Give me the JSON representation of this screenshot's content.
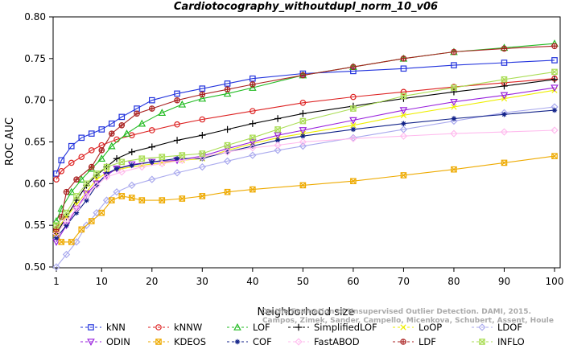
{
  "chart_data": {
    "type": "line",
    "title": "Cardiotocography_withoutdupl_norm_10_v06",
    "xlabel": "Neighborhood size",
    "ylabel": "ROC AUC",
    "xlim": [
      1,
      100
    ],
    "ylim": [
      0.5,
      0.8
    ],
    "x_ticks": [
      "1",
      "10",
      "20",
      "30",
      "40",
      "50",
      "60",
      "70",
      "80",
      "90",
      "100"
    ],
    "y_ticks": [
      "0.50",
      "0.55",
      "0.60",
      "0.65",
      "0.70",
      "0.75",
      "0.80"
    ],
    "grid": false,
    "legend_position": "bottom",
    "citation": [
      "Campos, Zimek, Sander, Campello, Micenkova, Schubert, Assent, Houle",
      "On the Evaluation of Unsupervised Outlier Detection. DAMI, 2015."
    ],
    "series": [
      {
        "name": "kNN",
        "color": "#2233dd",
        "marker": "square",
        "points": [
          [
            1,
            0.612
          ],
          [
            2,
            0.628
          ],
          [
            4,
            0.645
          ],
          [
            6,
            0.655
          ],
          [
            8,
            0.66
          ],
          [
            10,
            0.665
          ],
          [
            12,
            0.672
          ],
          [
            14,
            0.68
          ],
          [
            17,
            0.69
          ],
          [
            20,
            0.7
          ],
          [
            25,
            0.708
          ],
          [
            30,
            0.714
          ],
          [
            35,
            0.72
          ],
          [
            40,
            0.726
          ],
          [
            50,
            0.732
          ],
          [
            60,
            0.735
          ],
          [
            70,
            0.738
          ],
          [
            80,
            0.742
          ],
          [
            90,
            0.745
          ],
          [
            100,
            0.748
          ]
        ]
      },
      {
        "name": "kNNW",
        "color": "#dd2222",
        "marker": "circle",
        "points": [
          [
            1,
            0.605
          ],
          [
            2,
            0.615
          ],
          [
            4,
            0.625
          ],
          [
            6,
            0.632
          ],
          [
            8,
            0.64
          ],
          [
            10,
            0.646
          ],
          [
            13,
            0.653
          ],
          [
            16,
            0.658
          ],
          [
            20,
            0.664
          ],
          [
            25,
            0.671
          ],
          [
            30,
            0.677
          ],
          [
            40,
            0.687
          ],
          [
            50,
            0.697
          ],
          [
            60,
            0.704
          ],
          [
            70,
            0.71
          ],
          [
            80,
            0.716
          ],
          [
            90,
            0.721
          ],
          [
            100,
            0.726
          ]
        ]
      },
      {
        "name": "LOF",
        "color": "#22bb22",
        "marker": "triangle",
        "points": [
          [
            1,
            0.555
          ],
          [
            2,
            0.57
          ],
          [
            4,
            0.59
          ],
          [
            6,
            0.605
          ],
          [
            8,
            0.618
          ],
          [
            10,
            0.63
          ],
          [
            12,
            0.645
          ],
          [
            15,
            0.66
          ],
          [
            18,
            0.672
          ],
          [
            22,
            0.685
          ],
          [
            26,
            0.695
          ],
          [
            30,
            0.702
          ],
          [
            35,
            0.708
          ],
          [
            40,
            0.715
          ],
          [
            50,
            0.73
          ],
          [
            60,
            0.74
          ],
          [
            70,
            0.75
          ],
          [
            80,
            0.758
          ],
          [
            90,
            0.763
          ],
          [
            100,
            0.768
          ]
        ]
      },
      {
        "name": "SimplifiedLOF",
        "color": "#000000",
        "marker": "plus",
        "points": [
          [
            1,
            0.54
          ],
          [
            3,
            0.56
          ],
          [
            5,
            0.58
          ],
          [
            7,
            0.598
          ],
          [
            9,
            0.61
          ],
          [
            11,
            0.62
          ],
          [
            13,
            0.63
          ],
          [
            16,
            0.638
          ],
          [
            20,
            0.644
          ],
          [
            25,
            0.652
          ],
          [
            30,
            0.658
          ],
          [
            35,
            0.665
          ],
          [
            40,
            0.672
          ],
          [
            45,
            0.678
          ],
          [
            50,
            0.684
          ],
          [
            60,
            0.693
          ],
          [
            70,
            0.702
          ],
          [
            80,
            0.71
          ],
          [
            90,
            0.717
          ],
          [
            100,
            0.725
          ]
        ]
      },
      {
        "name": "LoOP",
        "color": "#eeee00",
        "marker": "x",
        "points": [
          [
            1,
            0.545
          ],
          [
            3,
            0.56
          ],
          [
            5,
            0.575
          ],
          [
            7,
            0.59
          ],
          [
            9,
            0.605
          ],
          [
            11,
            0.613
          ],
          [
            14,
            0.618
          ],
          [
            18,
            0.622
          ],
          [
            22,
            0.625
          ],
          [
            26,
            0.628
          ],
          [
            30,
            0.63
          ],
          [
            35,
            0.64
          ],
          [
            40,
            0.648
          ],
          [
            45,
            0.655
          ],
          [
            50,
            0.66
          ],
          [
            60,
            0.67
          ],
          [
            70,
            0.682
          ],
          [
            80,
            0.692
          ],
          [
            90,
            0.702
          ],
          [
            100,
            0.712
          ]
        ]
      },
      {
        "name": "LDOF",
        "color": "#aaaaee",
        "marker": "diamond",
        "points": [
          [
            1,
            0.5
          ],
          [
            3,
            0.515
          ],
          [
            5,
            0.53
          ],
          [
            7,
            0.55
          ],
          [
            9,
            0.565
          ],
          [
            11,
            0.58
          ],
          [
            13,
            0.59
          ],
          [
            16,
            0.598
          ],
          [
            20,
            0.605
          ],
          [
            25,
            0.613
          ],
          [
            30,
            0.62
          ],
          [
            35,
            0.627
          ],
          [
            40,
            0.634
          ],
          [
            45,
            0.64
          ],
          [
            50,
            0.645
          ],
          [
            60,
            0.655
          ],
          [
            70,
            0.665
          ],
          [
            80,
            0.675
          ],
          [
            90,
            0.685
          ],
          [
            100,
            0.692
          ]
        ]
      },
      {
        "name": "ODIN",
        "color": "#9922dd",
        "marker": "triangle-down",
        "points": [
          [
            1,
            0.53
          ],
          [
            3,
            0.55
          ],
          [
            5,
            0.57
          ],
          [
            7,
            0.588
          ],
          [
            9,
            0.6
          ],
          [
            11,
            0.61
          ],
          [
            13,
            0.618
          ],
          [
            16,
            0.623
          ],
          [
            20,
            0.626
          ],
          [
            25,
            0.628
          ],
          [
            30,
            0.633
          ],
          [
            35,
            0.642
          ],
          [
            40,
            0.65
          ],
          [
            45,
            0.658
          ],
          [
            50,
            0.664
          ],
          [
            60,
            0.676
          ],
          [
            70,
            0.688
          ],
          [
            80,
            0.698
          ],
          [
            90,
            0.706
          ],
          [
            100,
            0.715
          ]
        ]
      },
      {
        "name": "KDEOS",
        "color": "#eeaa00",
        "marker": "square-x",
        "points": [
          [
            1,
            0.54
          ],
          [
            2,
            0.53
          ],
          [
            4,
            0.53
          ],
          [
            6,
            0.545
          ],
          [
            8,
            0.555
          ],
          [
            10,
            0.565
          ],
          [
            12,
            0.58
          ],
          [
            14,
            0.585
          ],
          [
            16,
            0.583
          ],
          [
            18,
            0.58
          ],
          [
            22,
            0.58
          ],
          [
            26,
            0.582
          ],
          [
            30,
            0.585
          ],
          [
            35,
            0.59
          ],
          [
            40,
            0.593
          ],
          [
            50,
            0.598
          ],
          [
            60,
            0.603
          ],
          [
            70,
            0.61
          ],
          [
            80,
            0.617
          ],
          [
            90,
            0.625
          ],
          [
            100,
            0.633
          ]
        ]
      },
      {
        "name": "COF",
        "color": "#112288",
        "marker": "asterisk",
        "points": [
          [
            1,
            0.535
          ],
          [
            3,
            0.55
          ],
          [
            5,
            0.565
          ],
          [
            7,
            0.58
          ],
          [
            9,
            0.598
          ],
          [
            11,
            0.612
          ],
          [
            13,
            0.618
          ],
          [
            16,
            0.622
          ],
          [
            20,
            0.626
          ],
          [
            25,
            0.63
          ],
          [
            30,
            0.63
          ],
          [
            35,
            0.638
          ],
          [
            40,
            0.645
          ],
          [
            45,
            0.652
          ],
          [
            50,
            0.657
          ],
          [
            60,
            0.665
          ],
          [
            70,
            0.672
          ],
          [
            80,
            0.678
          ],
          [
            90,
            0.683
          ],
          [
            100,
            0.688
          ]
        ]
      },
      {
        "name": "FastABOD",
        "color": "#ffbbee",
        "marker": "diamond",
        "points": [
          [
            1,
            0.54
          ],
          [
            3,
            0.555
          ],
          [
            5,
            0.57
          ],
          [
            7,
            0.585
          ],
          [
            9,
            0.598
          ],
          [
            11,
            0.608
          ],
          [
            14,
            0.614
          ],
          [
            18,
            0.62
          ],
          [
            22,
            0.624
          ],
          [
            26,
            0.628
          ],
          [
            30,
            0.632
          ],
          [
            35,
            0.638
          ],
          [
            40,
            0.643
          ],
          [
            45,
            0.646
          ],
          [
            50,
            0.65
          ],
          [
            60,
            0.654
          ],
          [
            70,
            0.657
          ],
          [
            80,
            0.66
          ],
          [
            90,
            0.662
          ],
          [
            100,
            0.664
          ]
        ]
      },
      {
        "name": "LDF",
        "color": "#aa2222",
        "marker": "circle-plus",
        "points": [
          [
            1,
            0.545
          ],
          [
            2,
            0.56
          ],
          [
            3,
            0.59
          ],
          [
            5,
            0.605
          ],
          [
            8,
            0.62
          ],
          [
            10,
            0.64
          ],
          [
            12,
            0.66
          ],
          [
            14,
            0.67
          ],
          [
            17,
            0.684
          ],
          [
            20,
            0.69
          ],
          [
            25,
            0.7
          ],
          [
            30,
            0.707
          ],
          [
            35,
            0.713
          ],
          [
            40,
            0.719
          ],
          [
            50,
            0.73
          ],
          [
            60,
            0.74
          ],
          [
            70,
            0.75
          ],
          [
            80,
            0.758
          ],
          [
            90,
            0.762
          ],
          [
            100,
            0.765
          ]
        ]
      },
      {
        "name": "INFLO",
        "color": "#aadd55",
        "marker": "square-x",
        "points": [
          [
            1,
            0.55
          ],
          [
            3,
            0.565
          ],
          [
            5,
            0.585
          ],
          [
            7,
            0.6
          ],
          [
            9,
            0.612
          ],
          [
            11,
            0.62
          ],
          [
            14,
            0.626
          ],
          [
            18,
            0.63
          ],
          [
            22,
            0.632
          ],
          [
            26,
            0.634
          ],
          [
            30,
            0.636
          ],
          [
            35,
            0.646
          ],
          [
            40,
            0.655
          ],
          [
            45,
            0.665
          ],
          [
            50,
            0.675
          ],
          [
            60,
            0.69
          ],
          [
            70,
            0.705
          ],
          [
            80,
            0.715
          ],
          [
            90,
            0.725
          ],
          [
            100,
            0.734
          ]
        ]
      }
    ]
  }
}
